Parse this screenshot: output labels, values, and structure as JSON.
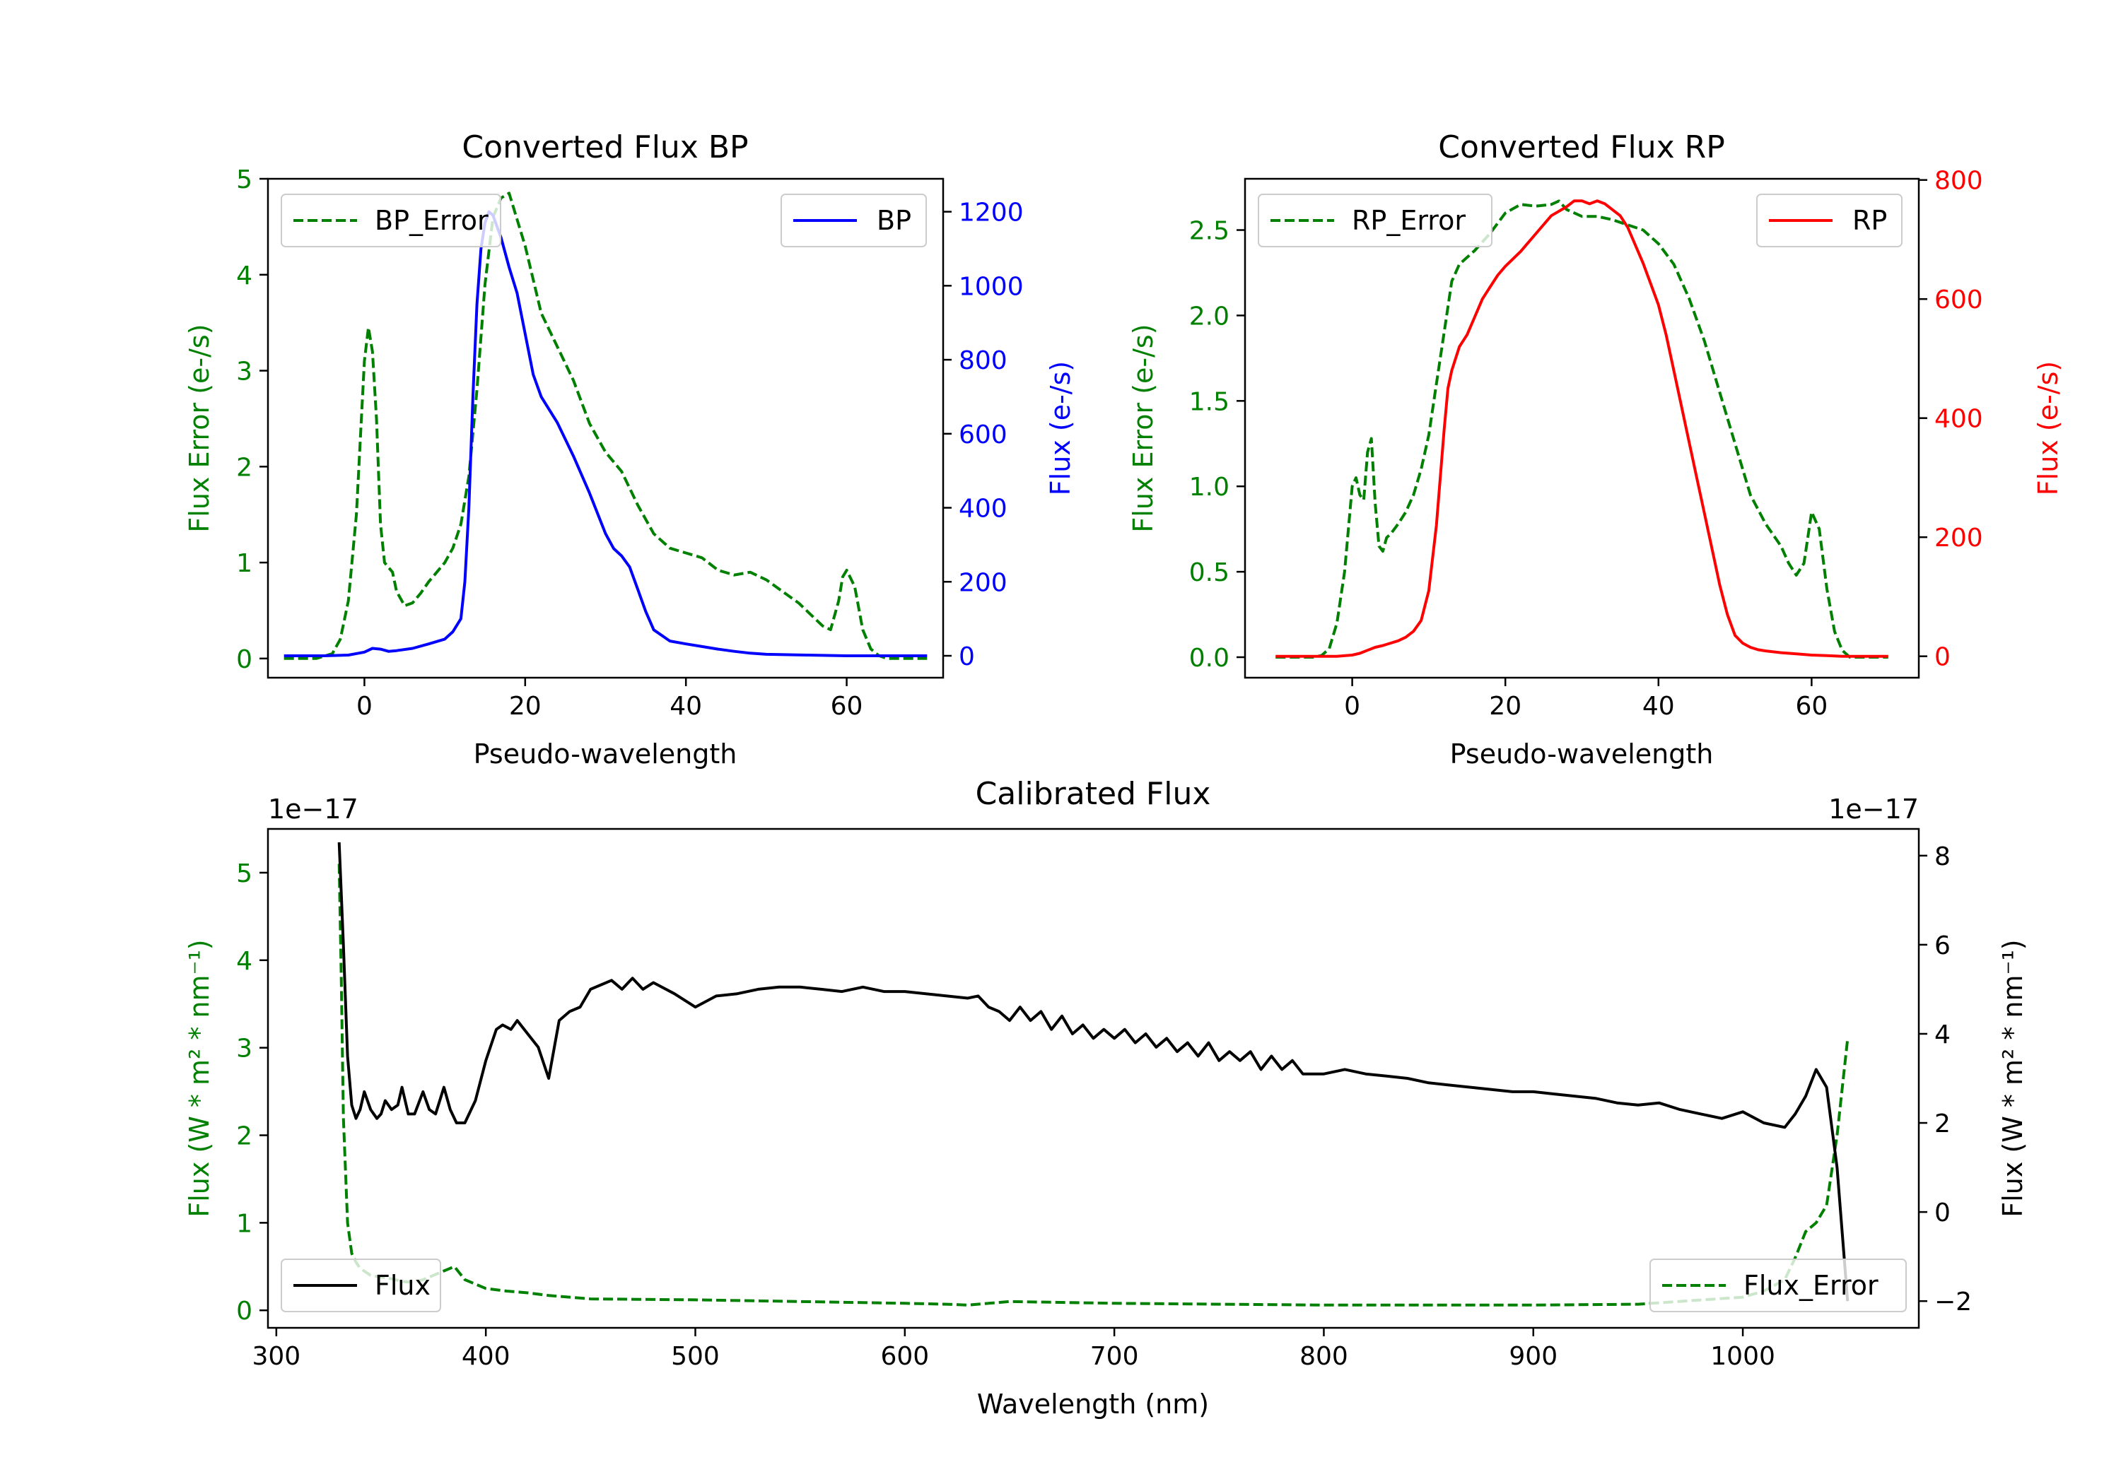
{
  "figure": {
    "colors": {
      "green": "#008000",
      "blue": "#0000ff",
      "red": "#ff0000",
      "black": "#000000",
      "legend_edge": "#cccccc"
    }
  },
  "chart_data": [
    {
      "id": "bp",
      "type": "line",
      "title": "Converted Flux BP",
      "xlabel": "Pseudo-wavelength",
      "ylabel_left": "Flux Error (e-/s)",
      "ylabel_right": "Flux (e-/s)",
      "xlim": [
        -12,
        72
      ],
      "ylim_left": [
        -0.2,
        5.0
      ],
      "ylim_right": [
        -59.2,
        1289
      ],
      "xticks": [
        0,
        20,
        40,
        60
      ],
      "yticks_left": [
        0,
        1,
        2,
        3,
        4,
        5
      ],
      "yticks_right": [
        0,
        200,
        400,
        600,
        800,
        1000,
        1200
      ],
      "legend_left": "BP_Error",
      "legend_right": "BP",
      "right_color": "#0000ff",
      "series": [
        {
          "name": "BP_Error",
          "axis": "left",
          "color": "#008000",
          "dash": true,
          "x": [
            -10,
            -6,
            -4,
            -3,
            -2,
            -1,
            0,
            0.5,
            1,
            1.5,
            2,
            2.5,
            3,
            3.5,
            4,
            5,
            6,
            7,
            8,
            9,
            10,
            11,
            12,
            13,
            14,
            15,
            16,
            17,
            18,
            20,
            22,
            24,
            26,
            28,
            30,
            32,
            34,
            36,
            38,
            40,
            42,
            44,
            46,
            48,
            50,
            52,
            54,
            56,
            57,
            58,
            59,
            59.5,
            60,
            61,
            62,
            63,
            64,
            65,
            70
          ],
          "y": [
            0,
            0,
            0.05,
            0.2,
            0.6,
            1.5,
            3.1,
            3.45,
            3.2,
            2.5,
            1.4,
            1.0,
            0.95,
            0.9,
            0.7,
            0.55,
            0.58,
            0.68,
            0.8,
            0.9,
            1.0,
            1.15,
            1.4,
            1.9,
            2.8,
            3.9,
            4.6,
            4.8,
            4.85,
            4.3,
            3.6,
            3.25,
            2.9,
            2.45,
            2.15,
            1.95,
            1.6,
            1.3,
            1.15,
            1.1,
            1.05,
            0.92,
            0.87,
            0.9,
            0.82,
            0.7,
            0.58,
            0.42,
            0.34,
            0.3,
            0.6,
            0.85,
            0.92,
            0.75,
            0.3,
            0.1,
            0.03,
            0.0,
            0.0
          ]
        },
        {
          "name": "BP",
          "axis": "right",
          "color": "#0000ff",
          "dash": false,
          "x": [
            -10,
            -5,
            -2,
            0,
            1,
            2,
            3,
            4,
            6,
            8,
            10,
            11,
            12,
            12.5,
            13,
            13.5,
            14,
            14.5,
            15,
            15.5,
            16,
            17,
            18,
            19,
            20,
            21,
            22,
            24,
            26,
            28,
            30,
            31,
            32,
            33,
            34,
            35,
            36,
            38,
            40,
            42,
            44,
            46,
            48,
            50,
            55,
            60,
            65,
            70
          ],
          "y": [
            0,
            0,
            2,
            10,
            20,
            18,
            12,
            14,
            20,
            32,
            45,
            65,
            100,
            200,
            400,
            700,
            950,
            1100,
            1170,
            1200,
            1190,
            1130,
            1050,
            980,
            870,
            760,
            700,
            630,
            540,
            440,
            330,
            290,
            270,
            240,
            180,
            120,
            70,
            40,
            32,
            25,
            18,
            12,
            7,
            4,
            2,
            0,
            0,
            0
          ]
        }
      ]
    },
    {
      "id": "rp",
      "type": "line",
      "title": "Converted Flux RP",
      "xlabel": "Pseudo-wavelength",
      "ylabel_left": "Flux Error (e-/s)",
      "ylabel_right": "Flux (e-/s)",
      "xlim": [
        -14,
        74
      ],
      "ylim_left": [
        -0.12,
        2.8
      ],
      "ylim_right": [
        -36,
        802
      ],
      "xticks": [
        0,
        20,
        40,
        60
      ],
      "yticks_left": [
        0.0,
        0.5,
        1.0,
        1.5,
        2.0,
        2.5
      ],
      "yticks_right": [
        0,
        200,
        400,
        600,
        800
      ],
      "legend_left": "RP_Error",
      "legend_right": "RP",
      "right_color": "#ff0000",
      "series": [
        {
          "name": "RP_Error",
          "axis": "left",
          "color": "#008000",
          "dash": true,
          "x": [
            -10,
            -5,
            -4,
            -3,
            -2,
            -1,
            0,
            0.5,
            1,
            1.5,
            2,
            2.5,
            3,
            3.5,
            4,
            4.5,
            5,
            6,
            7,
            8,
            9,
            10,
            11,
            12,
            13,
            14,
            16,
            18,
            20,
            22,
            24,
            26,
            27,
            28,
            30,
            32,
            34,
            36,
            38,
            40,
            42,
            44,
            46,
            48,
            50,
            52,
            54,
            56,
            57,
            58,
            59,
            59.5,
            60,
            61,
            62,
            63,
            64,
            65,
            70
          ],
          "y": [
            0,
            0,
            0.01,
            0.05,
            0.2,
            0.5,
            1.0,
            1.05,
            0.95,
            0.92,
            1.2,
            1.28,
            0.9,
            0.65,
            0.62,
            0.7,
            0.72,
            0.78,
            0.85,
            0.95,
            1.1,
            1.3,
            1.6,
            1.9,
            2.2,
            2.3,
            2.38,
            2.48,
            2.6,
            2.65,
            2.64,
            2.65,
            2.67,
            2.62,
            2.58,
            2.58,
            2.56,
            2.53,
            2.5,
            2.42,
            2.3,
            2.1,
            1.85,
            1.55,
            1.25,
            0.95,
            0.78,
            0.65,
            0.55,
            0.48,
            0.55,
            0.7,
            0.85,
            0.75,
            0.4,
            0.15,
            0.04,
            0.0,
            0.0
          ]
        },
        {
          "name": "RP",
          "axis": "right",
          "color": "#ff0000",
          "dash": false,
          "x": [
            -10,
            -5,
            -2,
            0,
            1,
            2,
            3,
            4,
            5,
            6,
            7,
            8,
            9,
            10,
            11,
            12,
            12.5,
            13,
            14,
            15,
            16,
            17,
            18,
            19,
            20,
            22,
            24,
            26,
            28,
            29,
            30,
            31,
            32,
            33,
            34,
            35,
            36,
            37,
            38,
            39,
            40,
            41,
            42,
            43,
            44,
            45,
            46,
            47,
            48,
            49,
            50,
            51,
            52,
            53,
            54,
            56,
            58,
            60,
            62,
            64,
            66,
            68,
            70
          ],
          "y": [
            0,
            0,
            0,
            2,
            5,
            10,
            15,
            18,
            22,
            26,
            32,
            42,
            60,
            110,
            220,
            380,
            450,
            480,
            520,
            540,
            570,
            600,
            620,
            640,
            655,
            680,
            710,
            740,
            755,
            765,
            765,
            760,
            765,
            760,
            750,
            740,
            720,
            690,
            660,
            625,
            590,
            540,
            480,
            420,
            360,
            300,
            240,
            180,
            120,
            70,
            35,
            22,
            15,
            11,
            9,
            6,
            4,
            2,
            1,
            0,
            0,
            0,
            0
          ]
        }
      ]
    },
    {
      "id": "calibrated",
      "type": "line",
      "title": "Calibrated Flux",
      "xlabel": "Wavelength (nm)",
      "ylabel_left": "Flux (W * m² * nm⁻¹)",
      "ylabel_right": "Flux (W * m² * nm⁻¹)",
      "offset_left": "1e−17",
      "offset_right": "1e−17",
      "xlim": [
        296,
        1084
      ],
      "ylim_left": [
        -0.2,
        5.5
      ],
      "ylim_right": [
        -2.6,
        8.6
      ],
      "xticks": [
        300,
        400,
        500,
        600,
        700,
        800,
        900,
        1000
      ],
      "yticks_left": [
        0,
        1,
        2,
        3,
        4,
        5
      ],
      "yticks_right": [
        -2,
        0,
        2,
        4,
        6,
        8
      ],
      "legend_left": "Flux",
      "legend_right": "Flux_Error",
      "right_color": "#000000",
      "series": [
        {
          "name": "Flux",
          "axis": "right",
          "color": "#000000",
          "dash": false,
          "x": [
            330,
            332,
            334,
            336,
            338,
            340,
            342,
            345,
            348,
            350,
            352,
            355,
            358,
            360,
            363,
            366,
            370,
            373,
            376,
            380,
            383,
            386,
            390,
            395,
            400,
            405,
            408,
            412,
            415,
            420,
            425,
            430,
            435,
            440,
            445,
            450,
            455,
            460,
            465,
            470,
            475,
            480,
            490,
            500,
            510,
            520,
            530,
            540,
            550,
            560,
            570,
            580,
            590,
            600,
            610,
            620,
            630,
            635,
            640,
            645,
            650,
            655,
            660,
            665,
            670,
            675,
            680,
            685,
            690,
            695,
            700,
            705,
            710,
            715,
            720,
            725,
            730,
            735,
            740,
            745,
            750,
            755,
            760,
            765,
            770,
            775,
            780,
            785,
            790,
            800,
            810,
            820,
            830,
            840,
            850,
            860,
            870,
            880,
            890,
            900,
            910,
            920,
            930,
            940,
            950,
            960,
            970,
            980,
            990,
            1000,
            1010,
            1020,
            1025,
            1030,
            1035,
            1040,
            1045,
            1050
          ],
          "y": [
            8.3,
            6.0,
            3.5,
            2.4,
            2.1,
            2.3,
            2.7,
            2.3,
            2.1,
            2.2,
            2.5,
            2.3,
            2.4,
            2.8,
            2.2,
            2.2,
            2.7,
            2.3,
            2.2,
            2.8,
            2.3,
            2.0,
            2.0,
            2.5,
            3.4,
            4.1,
            4.2,
            4.1,
            4.3,
            4.0,
            3.7,
            3.0,
            4.3,
            4.5,
            4.6,
            5.0,
            5.1,
            5.2,
            5.0,
            5.25,
            5.0,
            5.15,
            4.9,
            4.6,
            4.85,
            4.9,
            5.0,
            5.05,
            5.05,
            5.0,
            4.95,
            5.05,
            4.95,
            4.95,
            4.9,
            4.85,
            4.8,
            4.85,
            4.6,
            4.5,
            4.3,
            4.6,
            4.3,
            4.5,
            4.1,
            4.4,
            4.0,
            4.2,
            3.9,
            4.1,
            3.9,
            4.1,
            3.8,
            4.0,
            3.7,
            3.9,
            3.6,
            3.8,
            3.5,
            3.8,
            3.4,
            3.6,
            3.4,
            3.6,
            3.2,
            3.5,
            3.2,
            3.4,
            3.1,
            3.1,
            3.2,
            3.1,
            3.05,
            3.0,
            2.9,
            2.85,
            2.8,
            2.75,
            2.7,
            2.7,
            2.65,
            2.6,
            2.55,
            2.45,
            2.4,
            2.45,
            2.3,
            2.2,
            2.1,
            2.25,
            2.0,
            1.9,
            2.2,
            2.6,
            3.2,
            2.8,
            1.0,
            -2.0
          ]
        },
        {
          "name": "Flux_Error",
          "axis": "left",
          "color": "#008000",
          "dash": true,
          "x": [
            330,
            331,
            332,
            334,
            336,
            338,
            340,
            345,
            350,
            355,
            360,
            365,
            370,
            375,
            380,
            385,
            390,
            395,
            400,
            410,
            420,
            430,
            440,
            450,
            500,
            550,
            600,
            620,
            630,
            640,
            650,
            700,
            800,
            900,
            950,
            1000,
            1010,
            1020,
            1025,
            1030,
            1035,
            1040,
            1045,
            1050
          ],
          "y": [
            5.1,
            3.8,
            2.2,
            1.0,
            0.65,
            0.55,
            0.48,
            0.4,
            0.38,
            0.36,
            0.33,
            0.32,
            0.35,
            0.4,
            0.45,
            0.5,
            0.35,
            0.3,
            0.25,
            0.22,
            0.2,
            0.17,
            0.15,
            0.13,
            0.12,
            0.1,
            0.08,
            0.07,
            0.06,
            0.08,
            0.1,
            0.08,
            0.06,
            0.06,
            0.07,
            0.15,
            0.22,
            0.35,
            0.6,
            0.9,
            1.0,
            1.2,
            2.0,
            3.1
          ]
        }
      ]
    }
  ]
}
